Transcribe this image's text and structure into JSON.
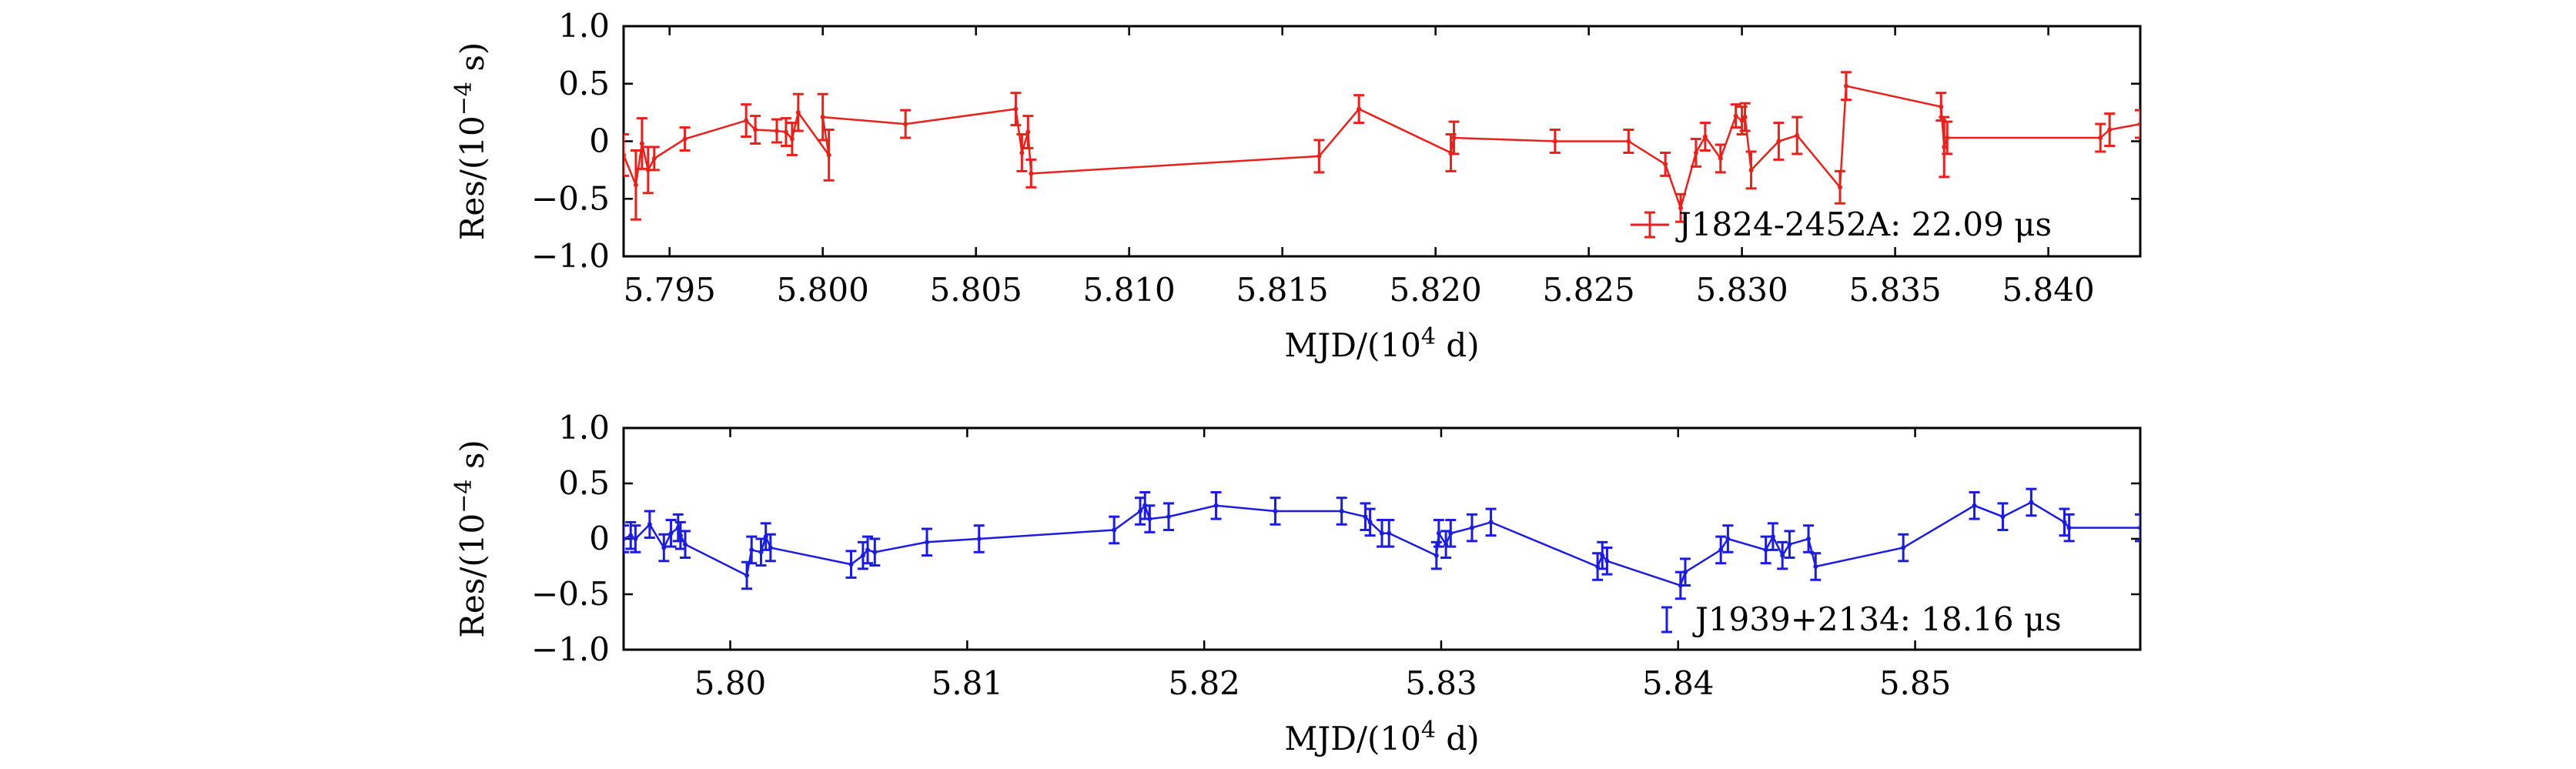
{
  "chart_data": [
    {
      "type": "scatter",
      "style": "line-with-error-bars",
      "xlabel": "MJD/(10",
      "xlabel_sup": "4",
      "xlabel_end": " d)",
      "ylabel": "Res/(10",
      "ylabel_sup": "−4",
      "ylabel_end": " s)",
      "xlim": [
        5.7935,
        5.843
      ],
      "ylim": [
        -1.0,
        1.0
      ],
      "xticks": [
        5.795,
        5.8,
        5.805,
        5.81,
        5.815,
        5.82,
        5.825,
        5.83,
        5.835,
        5.84
      ],
      "xtick_labels": [
        "5.795",
        "5.800",
        "5.805",
        "5.810",
        "5.815",
        "5.820",
        "5.825",
        "5.830",
        "5.835",
        "5.840"
      ],
      "yticks": [
        1.0,
        0.5,
        0,
        -0.5,
        -1.0
      ],
      "ytick_labels": [
        "1.0",
        "0.5",
        "0",
        "−0.5",
        "−1.0"
      ],
      "color": "#e8211c",
      "legend_position": "bottom-right",
      "series": [
        {
          "name": "J1824-2452A: 22.09 μs",
          "x": [
            5.7935,
            5.7939,
            5.7941,
            5.7943,
            5.7945,
            5.7955,
            5.7975,
            5.7978,
            5.7985,
            5.7988,
            5.799,
            5.7992,
            5.8002,
            5.8,
            5.8027,
            5.8063,
            5.8065,
            5.8067,
            5.8068,
            5.8162,
            5.8175,
            5.8205,
            5.8206,
            5.8239,
            5.8263,
            5.8275,
            5.828,
            5.8285,
            5.8288,
            5.8293,
            5.8298,
            5.83,
            5.8301,
            5.8303,
            5.8312,
            5.8318,
            5.8332,
            5.8334,
            5.8365,
            5.8366,
            5.8367,
            5.8417,
            5.842,
            5.843
          ],
          "y": [
            -0.12,
            -0.38,
            -0.02,
            -0.25,
            -0.15,
            0.02,
            0.18,
            0.1,
            0.09,
            0.08,
            0.02,
            0.25,
            -0.12,
            0.21,
            0.15,
            0.28,
            -0.1,
            0.08,
            -0.28,
            -0.13,
            0.28,
            -0.1,
            0.03,
            0.0,
            0.0,
            -0.2,
            -0.58,
            -0.1,
            0.04,
            -0.15,
            0.22,
            0.18,
            0.21,
            -0.25,
            0.0,
            0.05,
            -0.4,
            0.48,
            0.3,
            -0.05,
            0.03,
            0.03,
            0.1,
            0.15
          ],
          "err": [
            0.18,
            0.3,
            0.22,
            0.2,
            0.1,
            0.1,
            0.14,
            0.12,
            0.1,
            0.12,
            0.14,
            0.16,
            0.22,
            0.2,
            0.12,
            0.14,
            0.16,
            0.14,
            0.12,
            0.14,
            0.12,
            0.16,
            0.14,
            0.1,
            0.1,
            0.1,
            0.12,
            0.12,
            0.12,
            0.12,
            0.1,
            0.12,
            0.12,
            0.16,
            0.16,
            0.16,
            0.14,
            0.12,
            0.12,
            0.26,
            0.14,
            0.12,
            0.14,
            0.12
          ]
        }
      ]
    },
    {
      "type": "scatter",
      "style": "line-with-error-bars",
      "xlabel": "MJD/(10",
      "xlabel_sup": "4",
      "xlabel_end": " d)",
      "ylabel": "Res/(10",
      "ylabel_sup": "−4",
      "ylabel_end": " s)",
      "xlim": [
        5.7955,
        5.8595
      ],
      "ylim": [
        -1.0,
        1.0
      ],
      "xticks": [
        5.8,
        5.81,
        5.82,
        5.83,
        5.84,
        5.85
      ],
      "xtick_labels": [
        "5.80",
        "5.81",
        "5.82",
        "5.83",
        "5.84",
        "5.85"
      ],
      "yticks": [
        1.0,
        0.5,
        0,
        -0.5,
        -1.0
      ],
      "ytick_labels": [
        "1.0",
        "0.5",
        "0",
        "−0.5",
        "−1.0"
      ],
      "color": "#1c1ce0",
      "legend_position": "bottom-right",
      "series": [
        {
          "name": "J1939+2134: 18.16 μs",
          "x": [
            5.7955,
            5.7958,
            5.796,
            5.7966,
            5.7972,
            5.7975,
            5.7978,
            5.7979,
            5.7981,
            5.8007,
            5.8009,
            5.8013,
            5.8015,
            5.8017,
            5.8051,
            5.8056,
            5.8058,
            5.8061,
            5.8083,
            5.8105,
            5.8162,
            5.8173,
            5.8175,
            5.8177,
            5.8185,
            5.8205,
            5.823,
            5.8258,
            5.8268,
            5.827,
            5.8275,
            5.8278,
            5.8298,
            5.8299,
            5.8302,
            5.8304,
            5.8313,
            5.8321,
            5.8366,
            5.8368,
            5.837,
            5.8401,
            5.8403,
            5.8418,
            5.8421,
            5.8437,
            5.844,
            5.8444,
            5.8447,
            5.8455,
            5.8458,
            5.8495,
            5.8525,
            5.8537,
            5.8549,
            5.8563,
            5.8565,
            5.8595
          ],
          "y": [
            0.0,
            0.03,
            0.0,
            0.13,
            -0.08,
            0.05,
            0.1,
            0.03,
            -0.05,
            -0.33,
            -0.1,
            -0.12,
            0.02,
            -0.08,
            -0.23,
            -0.15,
            -0.1,
            -0.12,
            -0.03,
            0.0,
            0.08,
            0.25,
            0.3,
            0.18,
            0.2,
            0.3,
            0.25,
            0.25,
            0.2,
            0.15,
            0.05,
            0.05,
            -0.15,
            0.05,
            -0.05,
            0.05,
            0.1,
            0.15,
            -0.25,
            -0.15,
            -0.2,
            -0.42,
            -0.3,
            -0.1,
            0.0,
            -0.1,
            0.02,
            -0.15,
            -0.05,
            0.0,
            -0.25,
            -0.08,
            0.3,
            0.2,
            0.33,
            0.15,
            0.1,
            0.1
          ]
        }
      ]
    }
  ]
}
